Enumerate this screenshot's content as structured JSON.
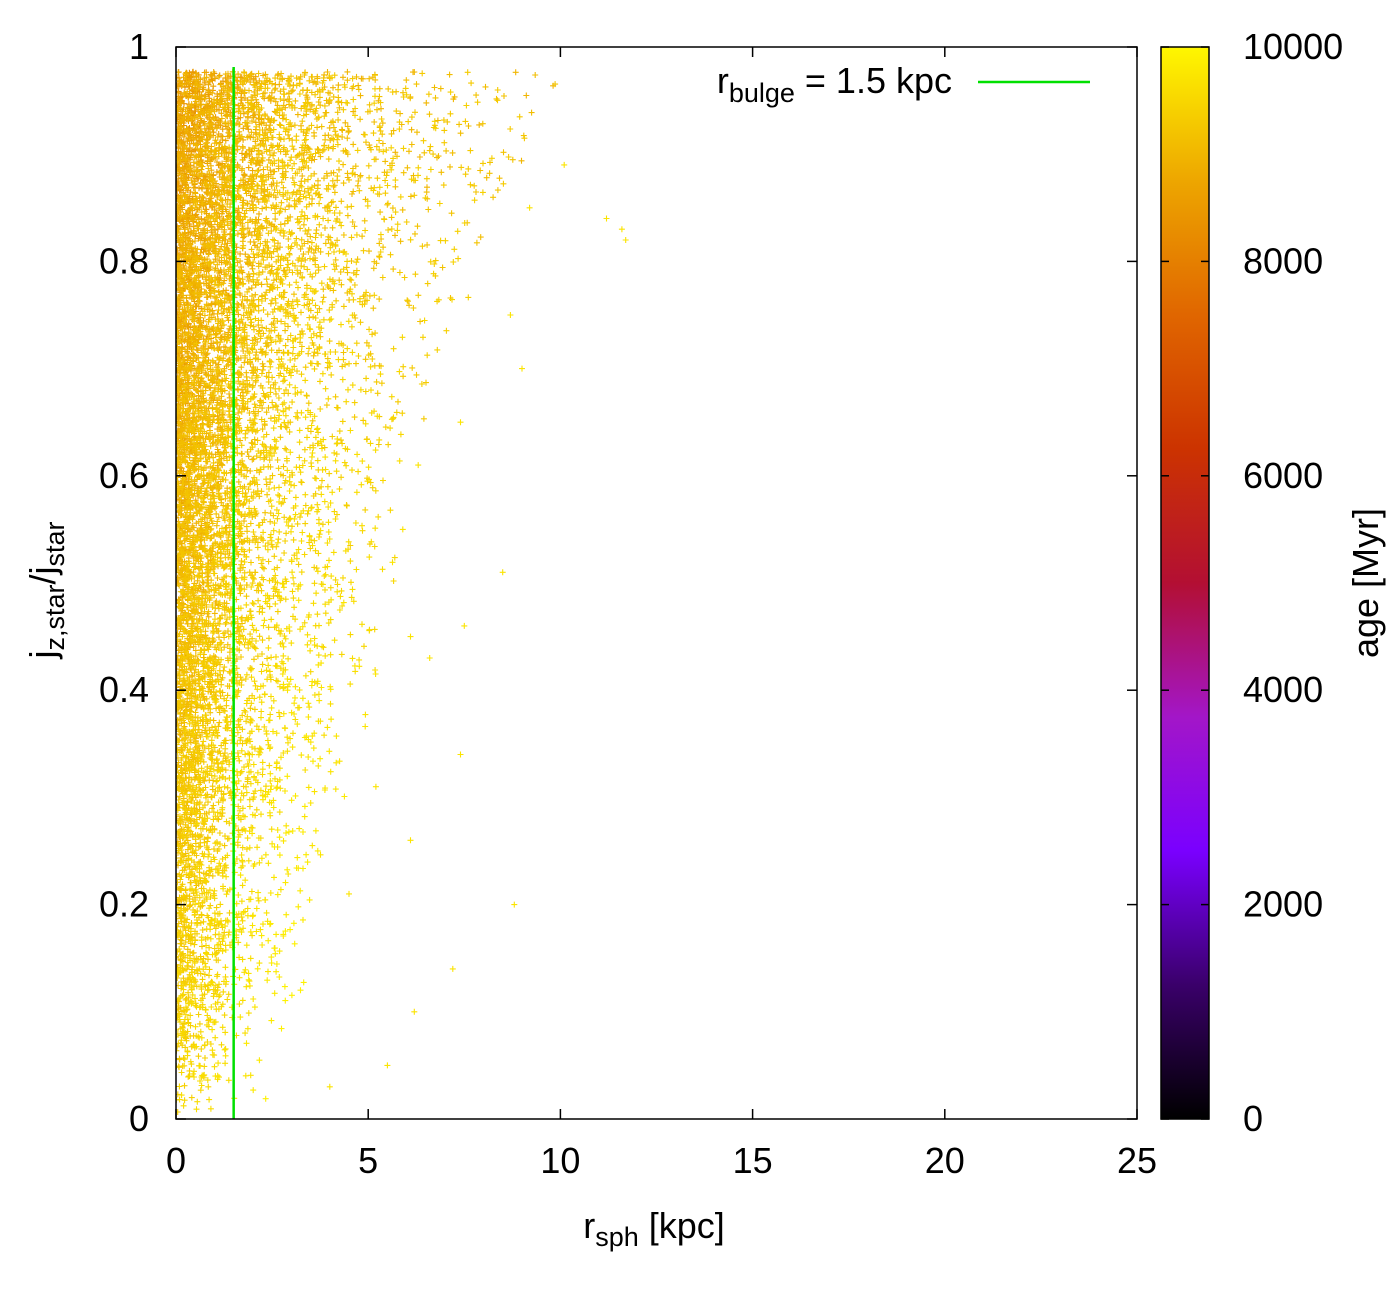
{
  "chart_data": {
    "type": "scatter",
    "marker": "+",
    "xlabel": {
      "main": "r",
      "sub": "sph",
      "unit": " [kpc]"
    },
    "ylabel": {
      "p1": "j",
      "s1": "z,star",
      "p2": "/j",
      "s2": "star"
    },
    "xlim": [
      0,
      25
    ],
    "ylim": [
      0,
      1
    ],
    "x_ticks": [
      0,
      5,
      10,
      15,
      20,
      25
    ],
    "y_ticks": [
      0,
      0.2,
      0.4,
      0.6,
      0.8,
      1
    ],
    "grid": false,
    "legend": {
      "position": "top-right",
      "entries": [
        {
          "main": "r",
          "sub": "bulge",
          "rest": " = 1.5 kpc",
          "color": "#00e000",
          "type": "line"
        }
      ]
    },
    "reference_line": {
      "x": 1.5,
      "orientation": "vertical",
      "color": "#00e000"
    },
    "colorbar": {
      "label": "age [Myr]",
      "range": [
        0,
        10000
      ],
      "ticks": [
        0,
        2000,
        4000,
        6000,
        8000,
        10000
      ],
      "stops": [
        "#000000",
        "#3a006a",
        "#7a00ff",
        "#a316c8",
        "#b30f33",
        "#cc3300",
        "#e06600",
        "#eda600",
        "#fff700"
      ]
    },
    "point_color_range_age": [
      8000,
      10000
    ],
    "series": [
      {
        "density_envelope": {
          "description_points_x": [
            0,
            1,
            2,
            3,
            4,
            5,
            6,
            7,
            8,
            9,
            10,
            11,
            12
          ],
          "upper_x_at_y": [
            {
              "y": 0.0,
              "x_max": 3.0
            },
            {
              "y": 0.1,
              "x_max": 4.0
            },
            {
              "y": 0.2,
              "x_max": 5.0
            },
            {
              "y": 0.3,
              "x_max": 5.5
            },
            {
              "y": 0.4,
              "x_max": 6.5
            },
            {
              "y": 0.5,
              "x_max": 7.0
            },
            {
              "y": 0.6,
              "x_max": 7.5
            },
            {
              "y": 0.7,
              "x_max": 8.5
            },
            {
              "y": 0.8,
              "x_max": 10.0
            },
            {
              "y": 0.9,
              "x_max": 11.5
            },
            {
              "y": 0.975,
              "x_max": 12.5
            }
          ],
          "y_max": 0.977
        },
        "sample_outliers": [
          [
            11.7,
            0.82
          ],
          [
            11.6,
            0.83
          ],
          [
            11.2,
            0.84
          ],
          [
            10.1,
            0.89
          ],
          [
            9.2,
            0.85
          ],
          [
            9.0,
            0.7
          ],
          [
            8.8,
            0.2
          ],
          [
            8.5,
            0.51
          ],
          [
            8.7,
            0.75
          ],
          [
            7.4,
            0.34
          ],
          [
            7.2,
            0.14
          ],
          [
            7.4,
            0.65
          ],
          [
            6.1,
            0.26
          ],
          [
            6.2,
            0.1
          ],
          [
            5.5,
            0.05
          ],
          [
            5.2,
            0.31
          ],
          [
            4.5,
            0.21
          ],
          [
            4.0,
            0.03
          ],
          [
            6.6,
            0.43
          ],
          [
            7.5,
            0.46
          ],
          [
            6.1,
            0.45
          ],
          [
            5.9,
            0.55
          ],
          [
            6.3,
            0.61
          ]
        ]
      }
    ]
  }
}
